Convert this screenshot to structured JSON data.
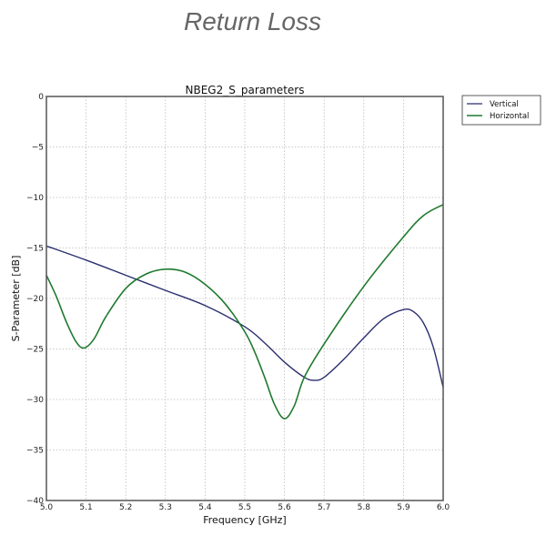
{
  "heading": "Return Loss",
  "chart_data": {
    "type": "line",
    "title": "NBEG2_S_parameters",
    "xlabel": "Frequency [GHz]",
    "ylabel": "S-Parameter [dB]",
    "xlim": [
      5.0,
      6.0
    ],
    "ylim": [
      -40,
      0
    ],
    "xticks": [
      "5.0",
      "5.1",
      "5.2",
      "5.3",
      "5.4",
      "5.5",
      "5.6",
      "5.7",
      "5.8",
      "5.9",
      "6.0"
    ],
    "yticks": [
      "0",
      "−5",
      "−10",
      "−15",
      "−20",
      "−25",
      "−30",
      "−35",
      "−40"
    ],
    "grid": true,
    "legend_position": "outside-top-right",
    "series": [
      {
        "name": "Vertical",
        "color": "#2b2f6e",
        "x": [
          5.0,
          5.1,
          5.2,
          5.3,
          5.4,
          5.5,
          5.55,
          5.6,
          5.65,
          5.675,
          5.7,
          5.75,
          5.8,
          5.85,
          5.9,
          5.925,
          5.95,
          5.975,
          6.0
        ],
        "y": [
          -14.8,
          -16.2,
          -17.7,
          -19.2,
          -20.7,
          -22.8,
          -24.4,
          -26.3,
          -27.8,
          -28.1,
          -27.8,
          -26.0,
          -23.9,
          -22.0,
          -21.1,
          -21.3,
          -22.4,
          -24.8,
          -28.8
        ]
      },
      {
        "name": "Horizontal",
        "color": "#1f7a2e",
        "x": [
          5.0,
          5.025,
          5.05,
          5.075,
          5.095,
          5.12,
          5.15,
          5.2,
          5.25,
          5.3,
          5.35,
          5.4,
          5.45,
          5.5,
          5.525,
          5.55,
          5.575,
          5.6,
          5.625,
          5.65,
          5.7,
          5.8,
          5.9,
          5.95,
          6.0
        ],
        "y": [
          -17.7,
          -19.8,
          -22.3,
          -24.3,
          -24.9,
          -24.0,
          -21.8,
          -19.0,
          -17.6,
          -17.1,
          -17.4,
          -18.6,
          -20.5,
          -23.3,
          -25.3,
          -27.8,
          -30.5,
          -31.9,
          -30.6,
          -27.8,
          -24.5,
          -18.8,
          -13.9,
          -11.8,
          -10.7
        ]
      }
    ]
  }
}
